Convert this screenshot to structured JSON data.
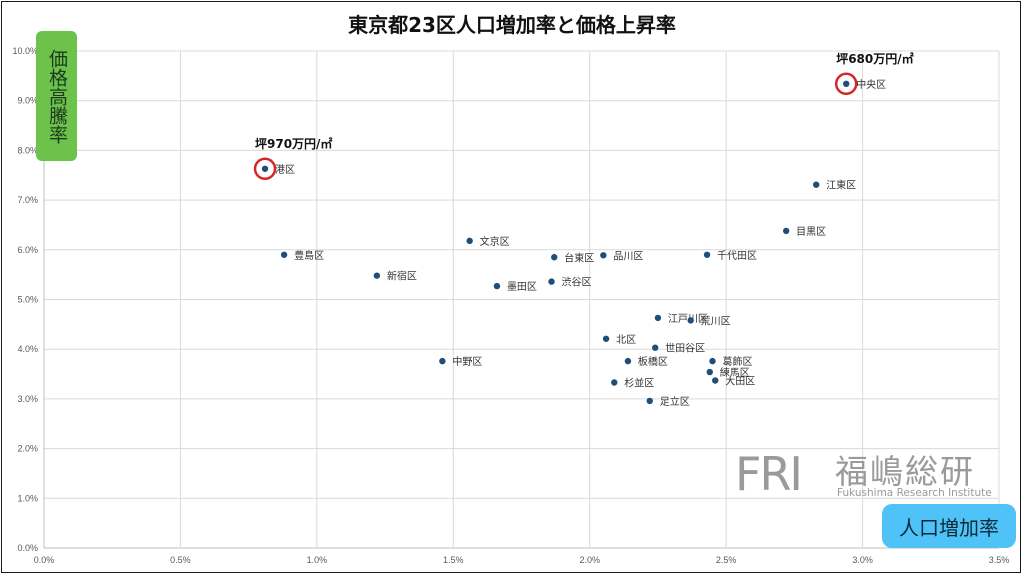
{
  "chart_data": {
    "type": "scatter",
    "title": "東京都23区人口増加率と価格上昇率",
    "xlabel": "人口増加率",
    "ylabel": "価格高騰率",
    "xlim": [
      0,
      0.035
    ],
    "ylim": [
      0,
      0.1
    ],
    "xticks": [
      "0.0%",
      "0.5%",
      "1.0%",
      "1.5%",
      "2.0%",
      "2.5%",
      "3.0%",
      "3.5%"
    ],
    "yticks": [
      "0.0%",
      "1.0%",
      "2.0%",
      "3.0%",
      "4.0%",
      "5.0%",
      "6.0%",
      "7.0%",
      "8.0%",
      "9.0%",
      "10.0%"
    ],
    "grid": true,
    "point_color": "#1f4e79",
    "highlight_color": "#d62728",
    "points": [
      {
        "label": "中央区",
        "x": 0.0294,
        "y": 0.0934,
        "highlight": true
      },
      {
        "label": "港区",
        "x": 0.0081,
        "y": 0.0763,
        "highlight": true
      },
      {
        "label": "江東区",
        "x": 0.0283,
        "y": 0.0731
      },
      {
        "label": "目黒区",
        "x": 0.0272,
        "y": 0.0638
      },
      {
        "label": "文京区",
        "x": 0.0156,
        "y": 0.0618
      },
      {
        "label": "豊島区",
        "x": 0.0088,
        "y": 0.059
      },
      {
        "label": "台東区",
        "x": 0.0187,
        "y": 0.0585
      },
      {
        "label": "品川区",
        "x": 0.0205,
        "y": 0.0589
      },
      {
        "label": "千代田区",
        "x": 0.0243,
        "y": 0.059
      },
      {
        "label": "新宿区",
        "x": 0.0122,
        "y": 0.0548
      },
      {
        "label": "渋谷区",
        "x": 0.0186,
        "y": 0.0536
      },
      {
        "label": "墨田区",
        "x": 0.0166,
        "y": 0.0527
      },
      {
        "label": "江戸川区",
        "x": 0.0225,
        "y": 0.0463
      },
      {
        "label": "荒川区",
        "x": 0.0237,
        "y": 0.0458
      },
      {
        "label": "北区",
        "x": 0.0206,
        "y": 0.0421
      },
      {
        "label": "世田谷区",
        "x": 0.0224,
        "y": 0.0403
      },
      {
        "label": "中野区",
        "x": 0.0146,
        "y": 0.0376
      },
      {
        "label": "板橋区",
        "x": 0.0214,
        "y": 0.0376
      },
      {
        "label": "葛飾区",
        "x": 0.0245,
        "y": 0.0376
      },
      {
        "label": "練馬区",
        "x": 0.0244,
        "y": 0.0354
      },
      {
        "label": "大田区",
        "x": 0.0246,
        "y": 0.0337
      },
      {
        "label": "杉並区",
        "x": 0.0209,
        "y": 0.0333
      },
      {
        "label": "足立区",
        "x": 0.0222,
        "y": 0.0296
      }
    ],
    "annotations": [
      {
        "text": "坪680万円/㎡",
        "target": "中央区"
      },
      {
        "text": "坪970万円/㎡",
        "target": "港区"
      }
    ]
  },
  "logo": {
    "mark": "FRI",
    "name": "福嶋総研",
    "subtitle": "Fukushima Research Institute"
  }
}
